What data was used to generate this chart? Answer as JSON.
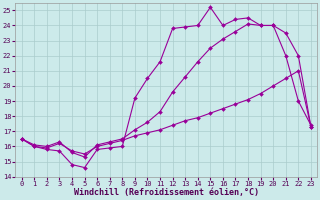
{
  "background_color": "#cceaea",
  "line_color": "#990099",
  "grid_color": "#aacccc",
  "title": "Windchill (Refroidissement éolien,°C)",
  "xlim": [
    -0.5,
    23.5
  ],
  "ylim": [
    14,
    25.5
  ],
  "yticks": [
    14,
    15,
    16,
    17,
    18,
    19,
    20,
    21,
    22,
    23,
    24,
    25
  ],
  "xticks": [
    0,
    1,
    2,
    3,
    4,
    5,
    6,
    7,
    8,
    9,
    10,
    11,
    12,
    13,
    14,
    15,
    16,
    17,
    18,
    19,
    20,
    21,
    22,
    23
  ],
  "line1_x": [
    0,
    1,
    2,
    3,
    4,
    5,
    6,
    7,
    8,
    9,
    10,
    11,
    12,
    13,
    14,
    15,
    16,
    17,
    18,
    19,
    20,
    21,
    22,
    23
  ],
  "line1_y": [
    16.5,
    16.0,
    15.8,
    15.7,
    14.8,
    14.6,
    15.8,
    15.9,
    16.0,
    19.2,
    20.5,
    21.6,
    23.8,
    23.9,
    24.0,
    25.2,
    24.0,
    24.4,
    24.5,
    24.0,
    24.0,
    22.0,
    19.0,
    17.4
  ],
  "line2_x": [
    0,
    1,
    2,
    3,
    4,
    5,
    6,
    7,
    8,
    9,
    10,
    11,
    12,
    13,
    14,
    15,
    16,
    17,
    18,
    19,
    20,
    21,
    22,
    23
  ],
  "line2_y": [
    16.5,
    16.1,
    16.0,
    16.3,
    15.6,
    15.3,
    16.1,
    16.3,
    16.5,
    17.1,
    17.6,
    18.3,
    19.6,
    20.6,
    21.6,
    22.5,
    23.1,
    23.6,
    24.1,
    24.0,
    24.0,
    23.5,
    22.0,
    17.3
  ],
  "line3_x": [
    0,
    1,
    2,
    3,
    4,
    5,
    6,
    7,
    8,
    9,
    10,
    11,
    12,
    13,
    14,
    15,
    16,
    17,
    18,
    19,
    20,
    21,
    22,
    23
  ],
  "line3_y": [
    16.5,
    16.0,
    15.9,
    16.2,
    15.7,
    15.5,
    16.0,
    16.2,
    16.4,
    16.7,
    16.9,
    17.1,
    17.4,
    17.7,
    17.9,
    18.2,
    18.5,
    18.8,
    19.1,
    19.5,
    20.0,
    20.5,
    21.0,
    17.3
  ]
}
